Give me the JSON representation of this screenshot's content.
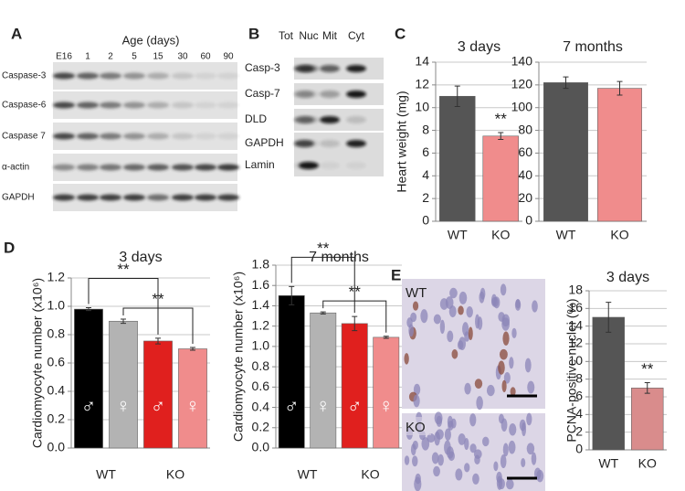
{
  "panel_letters": [
    "A",
    "B",
    "C",
    "D",
    "E"
  ],
  "blot_a": {
    "header": "Age (days)",
    "lanes": [
      "E16",
      "1",
      "2",
      "5",
      "15",
      "30",
      "60",
      "90"
    ],
    "rows": [
      "Caspase-3",
      "Caspase-6",
      "Caspase 7",
      "α-actin",
      "GAPDH"
    ]
  },
  "blot_b": {
    "lanes": [
      "Tot",
      "Nuc",
      "Mit",
      "Cyt"
    ],
    "rows": [
      "Casp-3",
      "Casp-7",
      "DLD",
      "GAPDH",
      "Lamin"
    ]
  },
  "micrographs": [
    "WT",
    "KO"
  ],
  "chart_data": [
    {
      "type": "bar",
      "title": "3 days",
      "ylabel": "Heart weight (mg)",
      "categories": [
        "WT",
        "KO"
      ],
      "values": [
        11,
        7.5
      ],
      "errors": [
        0.9,
        0.3
      ],
      "colors": [
        "#555555",
        "#f08c8c"
      ],
      "ylim": [
        0,
        14
      ],
      "yticks": [
        0,
        2,
        4,
        6,
        8,
        10,
        12,
        14
      ],
      "grid": true,
      "annotations": [
        "**"
      ]
    },
    {
      "type": "bar",
      "title": "7 months",
      "categories": [
        "WT",
        "KO"
      ],
      "values": [
        122,
        117
      ],
      "errors": [
        5,
        6
      ],
      "colors": [
        "#555555",
        "#f08c8c"
      ],
      "ylim": [
        0,
        140
      ],
      "yticks": [
        0,
        20,
        40,
        60,
        80,
        100,
        120,
        140
      ],
      "grid": true
    },
    {
      "type": "bar",
      "title": "3 days",
      "ylabel": "Cardiomyocyte number (x10⁶)",
      "categories": [
        "♂",
        "♀",
        "♂",
        "♀"
      ],
      "groups": [
        "WT",
        "KO"
      ],
      "values": [
        0.98,
        0.895,
        0.755,
        0.7
      ],
      "errors": [
        0.01,
        0.015,
        0.02,
        0.01
      ],
      "colors": [
        "#000000",
        "#b3b3b3",
        "#e0201e",
        "#f08c8c"
      ],
      "ylim": [
        0,
        1.2
      ],
      "yticks": [
        {
          "value": 0,
          "label": "0.0"
        },
        0.2,
        0.4,
        0.6,
        0.8,
        {
          "value": 1,
          "label": "1.0"
        },
        1.2
      ],
      "grid": true,
      "brackets": [
        "**",
        "**"
      ]
    },
    {
      "type": "bar",
      "title": "7 months",
      "ylabel": "Cardiomyocyte number (x10⁶)",
      "categories": [
        "♂",
        "♀",
        "♂",
        "♀"
      ],
      "groups": [
        "WT",
        "KO"
      ],
      "values": [
        1.5,
        1.33,
        1.225,
        1.09
      ],
      "errors": [
        0.09,
        0.01,
        0.07,
        0.01
      ],
      "colors": [
        "#000000",
        "#b3b3b3",
        "#e0201e",
        "#f08c8c"
      ],
      "ylim": [
        0,
        1.8
      ],
      "yticks": [
        {
          "value": 0,
          "label": "0.0"
        },
        0.2,
        0.4,
        0.6,
        0.8,
        {
          "value": 1,
          "label": "1.0"
        },
        1.2,
        1.4,
        1.6,
        1.8
      ],
      "grid": true,
      "brackets": [
        "**",
        "**"
      ]
    },
    {
      "type": "bar",
      "title": "3 days",
      "ylabel": "PCNA-positive nuclei (%)",
      "categories": [
        "WT",
        "KO"
      ],
      "values": [
        15,
        7
      ],
      "errors": [
        1.7,
        0.6
      ],
      "colors": [
        "#555555",
        "#d98c8c"
      ],
      "ylim": [
        0,
        18
      ],
      "yticks": [
        0,
        2,
        4,
        6,
        8,
        10,
        12,
        14,
        16,
        18
      ],
      "grid": true,
      "annotations": [
        "**"
      ]
    }
  ]
}
